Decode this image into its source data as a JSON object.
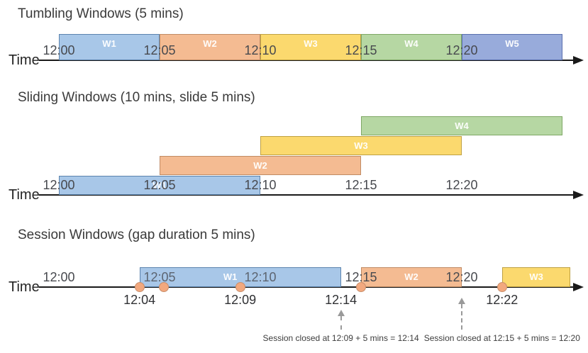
{
  "palette": {
    "blue": {
      "fill": "#A8C7E8",
      "border": "#5C84AE"
    },
    "orange": {
      "fill": "#F4BB92",
      "border": "#C08B64"
    },
    "yellow": {
      "fill": "#FBD96E",
      "border": "#BFA143"
    },
    "green": {
      "fill": "#B6D7A3",
      "border": "#7FA866"
    },
    "periwinkle": {
      "fill": "#98ABDB",
      "border": "#5A6FAE"
    },
    "dot_fill": "#F2A87E",
    "dot_border": "#C98F6C",
    "timeline": "#1A1A1A",
    "annotation_grey": "#9A9A9A"
  },
  "sections": [
    {
      "key": "tumbling",
      "title": "Tumbling Windows (5 mins)",
      "time_label": "Time",
      "ticks": [
        {
          "label": "12:00",
          "min": 0
        },
        {
          "label": "12:05",
          "min": 5
        },
        {
          "label": "12:10",
          "min": 10
        },
        {
          "label": "12:15",
          "min": 15
        },
        {
          "label": "12:20",
          "min": 20
        }
      ],
      "windows": [
        {
          "label": "W1",
          "color": "blue",
          "start_min": 0,
          "end_min": 5,
          "row": 0
        },
        {
          "label": "W2",
          "color": "orange",
          "start_min": 5,
          "end_min": 10,
          "row": 0
        },
        {
          "label": "W3",
          "color": "yellow",
          "start_min": 10,
          "end_min": 15,
          "row": 0
        },
        {
          "label": "W4",
          "color": "green",
          "start_min": 15,
          "end_min": 20,
          "row": 0
        },
        {
          "label": "W5",
          "color": "periwinkle",
          "start_min": 20,
          "end_min": 25,
          "row": 0
        }
      ]
    },
    {
      "key": "sliding",
      "title": "Sliding Windows (10 mins, slide 5 mins)",
      "time_label": "Time",
      "ticks": [
        {
          "label": "12:00",
          "min": 0
        },
        {
          "label": "12:05",
          "min": 5
        },
        {
          "label": "12:10",
          "min": 10
        },
        {
          "label": "12:15",
          "min": 15
        },
        {
          "label": "12:20",
          "min": 20
        }
      ],
      "windows": [
        {
          "label": "W1",
          "color": "blue",
          "start_min": 0,
          "end_min": 10,
          "row": 0
        },
        {
          "label": "W2",
          "color": "orange",
          "start_min": 5,
          "end_min": 15,
          "row": 1
        },
        {
          "label": "W3",
          "color": "yellow",
          "start_min": 10,
          "end_min": 20,
          "row": 2
        },
        {
          "label": "W4",
          "color": "green",
          "start_min": 15,
          "end_min": 25,
          "row": 3
        }
      ]
    },
    {
      "key": "session",
      "title": "Session Windows (gap duration 5 mins)",
      "time_label": "Time",
      "ticks": [
        {
          "label": "12:00",
          "min": 0
        },
        {
          "label": "12:05",
          "min": 5,
          "faded": true
        },
        {
          "label": "12:10",
          "min": 10,
          "faded": true
        },
        {
          "label": "12:15",
          "min": 15
        },
        {
          "label": "12:20",
          "min": 20
        }
      ],
      "windows": [
        {
          "label": "W1",
          "color": "blue",
          "start_min": 4,
          "end_min": 14,
          "row": 0,
          "label_shift": -14
        },
        {
          "label": "W2",
          "color": "orange",
          "start_min": 15,
          "end_min": 20,
          "row": 0
        },
        {
          "label": "W3",
          "color": "yellow",
          "start_min": 22,
          "end_min": 25.4,
          "row": 0
        }
      ],
      "events": [
        {
          "min": 4
        },
        {
          "min": 5.2
        },
        {
          "min": 9
        },
        {
          "min": 15
        },
        {
          "min": 22
        }
      ],
      "below_labels": [
        {
          "label": "12:04",
          "min": 4
        },
        {
          "label": "12:09",
          "min": 9
        },
        {
          "label": "12:14",
          "min": 14
        },
        {
          "label": "12:22",
          "min": 22
        }
      ]
    }
  ],
  "annotations": [
    {
      "text": "Session closed at 12:09 + 5 mins = 12:14",
      "arrow_min": 14,
      "text_center_min": 14
    },
    {
      "text": "Session closed at 12:15 + 5 mins = 12:20",
      "arrow_min": 20,
      "text_center_min": 22
    }
  ]
}
